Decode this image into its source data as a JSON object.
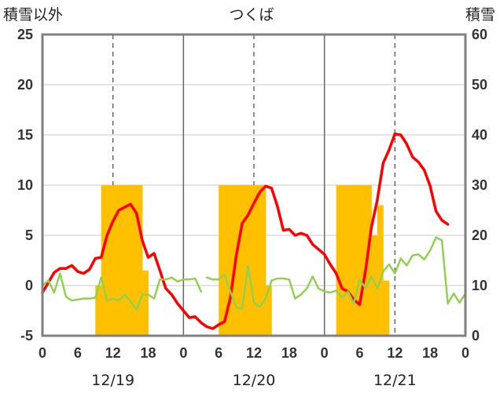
{
  "chart_data": {
    "type": "bar+line",
    "title": "つくば",
    "left_axis_label": "積雪以外",
    "right_axis_label": "積雪",
    "left_axis": {
      "min": -5,
      "max": 25,
      "ticks": [
        "25",
        "20",
        "15",
        "10",
        "5",
        "0",
        "-5"
      ]
    },
    "right_axis": {
      "min": 0,
      "max": 60,
      "ticks": [
        "60",
        "50",
        "40",
        "30",
        "20",
        "10",
        "0"
      ]
    },
    "x_axis": {
      "hours_total": 72,
      "tick_labels": [
        "0",
        "6",
        "12",
        "18",
        "0",
        "6",
        "12",
        "18",
        "0",
        "6",
        "12",
        "18",
        "0"
      ],
      "day_labels": [
        "12/19",
        "12/20",
        "12/21"
      ]
    },
    "grid": {
      "day_separators": true,
      "noon_dashed": true,
      "y_gridlines": true
    },
    "colors": {
      "snow": "#ffc000",
      "temperature": "#ff0000",
      "green_series": "#92d050",
      "baseline": "#7030a0",
      "frame": "#808080",
      "grid": "#c8c8c8"
    },
    "series": [
      {
        "axis": "right",
        "kind": "bar",
        "color": "#ffc000",
        "points": [
          [
            9.5,
            10
          ],
          [
            10.5,
            30
          ],
          [
            11.5,
            30
          ],
          [
            12.5,
            30
          ],
          [
            13.5,
            30
          ],
          [
            14.5,
            30
          ],
          [
            15.5,
            30
          ],
          [
            16.5,
            30
          ],
          [
            17.5,
            13
          ],
          [
            30.5,
            30
          ],
          [
            31.5,
            30
          ],
          [
            32.5,
            30
          ],
          [
            33.5,
            30
          ],
          [
            34.5,
            30
          ],
          [
            35.5,
            30
          ],
          [
            36.5,
            30
          ],
          [
            37.5,
            30
          ],
          [
            38.5,
            10
          ],
          [
            50.5,
            30
          ],
          [
            51.5,
            30
          ],
          [
            52.5,
            30
          ],
          [
            53.5,
            30
          ],
          [
            54.5,
            30
          ],
          [
            55.5,
            30
          ],
          [
            56.5,
            20
          ],
          [
            57.5,
            26
          ],
          [
            58.5,
            11
          ]
        ]
      },
      {
        "axis": "left",
        "kind": "line",
        "color": "#ff0000",
        "points": [
          [
            0,
            -0.7
          ],
          [
            1,
            0.3
          ],
          [
            2,
            1.3
          ],
          [
            3,
            1.7
          ],
          [
            4,
            1.7
          ],
          [
            5,
            2
          ],
          [
            6,
            1.4
          ],
          [
            7,
            1.2
          ],
          [
            8,
            1.6
          ],
          [
            9,
            2.7
          ],
          [
            10,
            2.8
          ],
          [
            11,
            5
          ],
          [
            12,
            6.4
          ],
          [
            13,
            7.5
          ],
          [
            14,
            7.8
          ],
          [
            15,
            8.1
          ],
          [
            16,
            7.2
          ],
          [
            17,
            4.5
          ],
          [
            18,
            2.8
          ],
          [
            19,
            3.2
          ],
          [
            20,
            1.5
          ],
          [
            21,
            -0.3
          ],
          [
            22,
            -0.9
          ],
          [
            23,
            -1.8
          ],
          [
            24,
            -2.5
          ],
          [
            25,
            -3.2
          ],
          [
            26,
            -3.1
          ],
          [
            27,
            -3.7
          ],
          [
            28,
            -4.1
          ],
          [
            29,
            -4.3
          ],
          [
            30,
            -3.9
          ],
          [
            31,
            -3.6
          ],
          [
            32,
            -1.2
          ],
          [
            33,
            3
          ],
          [
            34,
            6.2
          ],
          [
            35,
            7
          ],
          [
            36,
            8.2
          ],
          [
            37,
            9.3
          ],
          [
            38,
            9.9
          ],
          [
            39,
            9.7
          ],
          [
            40,
            7.9
          ],
          [
            41,
            5.5
          ],
          [
            42,
            5.6
          ],
          [
            43,
            5
          ],
          [
            44,
            5.2
          ],
          [
            45,
            5
          ],
          [
            46,
            4.1
          ],
          [
            47,
            3.6
          ],
          [
            48,
            3.1
          ],
          [
            49,
            2.1
          ],
          [
            50,
            1.2
          ],
          [
            51,
            -0.3
          ],
          [
            52,
            -0.6
          ],
          [
            53,
            -1.4
          ],
          [
            54,
            -1.9
          ],
          [
            55,
            1.5
          ],
          [
            56,
            5.8
          ],
          [
            57,
            8.5
          ],
          [
            58,
            12.2
          ],
          [
            59,
            13.5
          ],
          [
            60,
            15.1
          ],
          [
            61,
            15
          ],
          [
            62,
            14.1
          ],
          [
            63,
            12.8
          ],
          [
            64,
            12.3
          ],
          [
            65,
            11.5
          ],
          [
            66,
            9.9
          ],
          [
            67,
            7.4
          ],
          [
            68,
            6.5
          ],
          [
            69,
            6.1
          ]
        ]
      },
      {
        "axis": "left",
        "kind": "line",
        "color": "#92d050",
        "segments": [
          [
            [
              0,
              0
            ],
            [
              1,
              0.5
            ],
            [
              2,
              -0.7
            ],
            [
              3,
              1.2
            ],
            [
              4,
              -1.1
            ],
            [
              5,
              -1.5
            ],
            [
              6,
              -1.4
            ],
            [
              7,
              -1.3
            ],
            [
              8,
              -1.3
            ],
            [
              9,
              -1.2
            ],
            [
              10,
              0.8
            ],
            [
              11,
              -1.5
            ],
            [
              12,
              -1.3
            ],
            [
              13,
              -1.5
            ],
            [
              14,
              -0.9
            ],
            [
              15,
              -1.6
            ],
            [
              16,
              -2.4
            ],
            [
              17,
              -0.9
            ],
            [
              18,
              -0.9
            ],
            [
              19,
              -1.3
            ],
            [
              20,
              0.6
            ],
            [
              21,
              0.6
            ],
            [
              22,
              0.8
            ],
            [
              23,
              0.4
            ],
            [
              24,
              0.6
            ],
            [
              25,
              0.6
            ],
            [
              26,
              0.7
            ],
            [
              27,
              -0.6
            ]
          ],
          [
            [
              28,
              0.8
            ],
            [
              29,
              0.6
            ],
            [
              30,
              0.6
            ],
            [
              31,
              1.1
            ],
            [
              32,
              -0.6
            ],
            [
              33,
              -2.2
            ],
            [
              34,
              -2.3
            ],
            [
              35,
              2
            ],
            [
              36,
              -1.7
            ],
            [
              37,
              -2.1
            ],
            [
              38,
              -1.3
            ],
            [
              39,
              0.5
            ],
            [
              40,
              0.7
            ],
            [
              41,
              0.7
            ],
            [
              42,
              0.6
            ],
            [
              43,
              -1.3
            ],
            [
              44,
              -0.9
            ],
            [
              45,
              -0.3
            ],
            [
              46,
              0.9
            ],
            [
              47,
              -0.3
            ],
            [
              48,
              -0.6
            ],
            [
              49,
              -0.7
            ],
            [
              50,
              -0.5
            ],
            [
              51,
              -1.2
            ],
            [
              52,
              -0.6
            ],
            [
              53,
              -1.8
            ],
            [
              54,
              0.6
            ],
            [
              55,
              -0.3
            ],
            [
              56,
              0.9
            ],
            [
              57,
              -0.3
            ],
            [
              58,
              1.4
            ],
            [
              59,
              2.1
            ],
            [
              60,
              1.2
            ],
            [
              61,
              2.7
            ],
            [
              62,
              2
            ],
            [
              63,
              3
            ],
            [
              64,
              3.1
            ],
            [
              65,
              2.6
            ],
            [
              66,
              3.5
            ],
            [
              67,
              4.8
            ],
            [
              68,
              4.5
            ],
            [
              69,
              -1.8
            ],
            [
              70,
              -0.8
            ],
            [
              71,
              -1.7
            ],
            [
              72,
              -0.8
            ]
          ]
        ]
      },
      {
        "axis": "left",
        "kind": "line",
        "color": "#7030a0",
        "points": [
          [
            0,
            -5
          ],
          [
            72,
            -5
          ]
        ]
      }
    ]
  }
}
